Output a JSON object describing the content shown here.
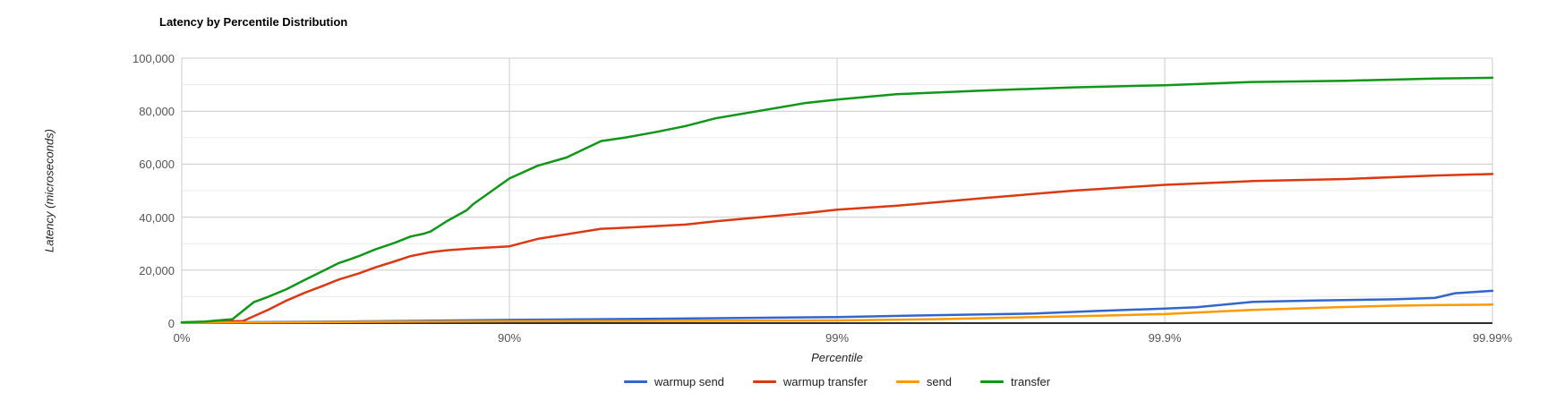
{
  "title": "Latency by Percentile Distribution",
  "chart_data": {
    "type": "line",
    "title": "Latency by Percentile Distribution",
    "xlabel": "Percentile",
    "ylabel": "Latency (microseconds)",
    "x_scale": "hdr-percentile-log: x = log10(100/(100-p)), 4 decades",
    "x_ticks": [
      {
        "label": "0%",
        "p": 0
      },
      {
        "label": "90%",
        "p": 90
      },
      {
        "label": "99%",
        "p": 99
      },
      {
        "label": "99.9%",
        "p": 99.9
      },
      {
        "label": "99.99%",
        "p": 99.99
      }
    ],
    "y_ticks": [
      {
        "label": "0",
        "v": 0
      },
      {
        "label": "20,000",
        "v": 20000
      },
      {
        "label": "40,000",
        "v": 40000
      },
      {
        "label": "60,000",
        "v": 60000
      },
      {
        "label": "80,000",
        "v": 80000
      },
      {
        "label": "100,000",
        "v": 100000
      }
    ],
    "ylim": [
      0,
      100000
    ],
    "minor_grid_step": 10000,
    "grid_on": true,
    "legend_position": "bottom-center",
    "series": [
      {
        "name": "warmup send",
        "color": "#3366CC",
        "points": [
          [
            0,
            150
          ],
          [
            50,
            450
          ],
          [
            75,
            700
          ],
          [
            90,
            1200
          ],
          [
            96.8,
            1700
          ],
          [
            99,
            2300
          ],
          [
            99.5,
            3000
          ],
          [
            99.75,
            3600
          ],
          [
            99.84,
            4600
          ],
          [
            99.9,
            5500
          ],
          [
            99.92,
            6000
          ],
          [
            99.946,
            8000
          ],
          [
            99.965,
            8500
          ],
          [
            99.98,
            9000
          ],
          [
            99.985,
            9500
          ],
          [
            99.987,
            11300
          ],
          [
            99.99,
            12200
          ]
        ]
      },
      {
        "name": "warmup transfer",
        "color": "#DC3912",
        "points": [
          [
            0,
            250
          ],
          [
            15,
            450
          ],
          [
            30,
            700
          ],
          [
            35,
            800
          ],
          [
            45.7,
            5100
          ],
          [
            52.1,
            8500
          ],
          [
            57.7,
            11400
          ],
          [
            62.8,
            14000
          ],
          [
            66.9,
            16500
          ],
          [
            71.2,
            18800
          ],
          [
            74.3,
            21000
          ],
          [
            77.6,
            23300
          ],
          [
            80,
            25300
          ],
          [
            82.6,
            26800
          ],
          [
            84.5,
            27500
          ],
          [
            87.1,
            28200
          ],
          [
            90,
            29000
          ],
          [
            91.8,
            31800
          ],
          [
            94.75,
            35600
          ],
          [
            95.6,
            36000
          ],
          [
            97.1,
            37200
          ],
          [
            97.65,
            38400
          ],
          [
            98.74,
            41500
          ],
          [
            99,
            42800
          ],
          [
            99.34,
            44300
          ],
          [
            99.645,
            47200
          ],
          [
            99.81,
            50000
          ],
          [
            99.9,
            52200
          ],
          [
            99.946,
            53600
          ],
          [
            99.972,
            54400
          ],
          [
            99.985,
            55700
          ],
          [
            99.99,
            56300
          ]
        ]
      },
      {
        "name": "send",
        "color": "#FF9900",
        "points": [
          [
            0,
            100
          ],
          [
            50,
            300
          ],
          [
            75,
            500
          ],
          [
            90,
            700
          ],
          [
            96.8,
            850
          ],
          [
            99,
            1000
          ],
          [
            99.5,
            1500
          ],
          [
            99.75,
            2300
          ],
          [
            99.84,
            2800
          ],
          [
            99.9,
            3400
          ],
          [
            99.946,
            5000
          ],
          [
            99.97,
            6000
          ],
          [
            99.98,
            6600
          ],
          [
            99.985,
            6800
          ],
          [
            99.99,
            7000
          ]
        ]
      },
      {
        "name": "transfer",
        "color": "#109618",
        "points": [
          [
            0,
            300
          ],
          [
            15,
            600
          ],
          [
            30,
            1500
          ],
          [
            39.7,
            7900
          ],
          [
            45.7,
            10000
          ],
          [
            52.1,
            12800
          ],
          [
            57.7,
            16200
          ],
          [
            62.8,
            19600
          ],
          [
            66.9,
            22700
          ],
          [
            69.5,
            24200
          ],
          [
            71.2,
            25300
          ],
          [
            74.3,
            27800
          ],
          [
            77.6,
            30300
          ],
          [
            80,
            32700
          ],
          [
            81.8,
            33800
          ],
          [
            82.6,
            34600
          ],
          [
            84.5,
            38500
          ],
          [
            86.5,
            42600
          ],
          [
            87.1,
            44900
          ],
          [
            90,
            54600
          ],
          [
            91.8,
            59400
          ],
          [
            93.3,
            62500
          ],
          [
            94.75,
            68700
          ],
          [
            95.6,
            70100
          ],
          [
            96.45,
            72200
          ],
          [
            97.1,
            74400
          ],
          [
            97.65,
            77300
          ],
          [
            98.74,
            83000
          ],
          [
            99,
            84400
          ],
          [
            99.34,
            86400
          ],
          [
            99.645,
            87800
          ],
          [
            99.81,
            89000
          ],
          [
            99.9,
            89800
          ],
          [
            99.946,
            91000
          ],
          [
            99.972,
            91500
          ],
          [
            99.985,
            92300
          ],
          [
            99.99,
            92600
          ]
        ]
      }
    ],
    "colors": {
      "grid_major": "#cccccc",
      "grid_minor": "#ebebeb",
      "baseline": "#2e2e2e",
      "tick_text": "#555555",
      "title_text": "#000000",
      "axis_title_text": "#222222"
    }
  }
}
